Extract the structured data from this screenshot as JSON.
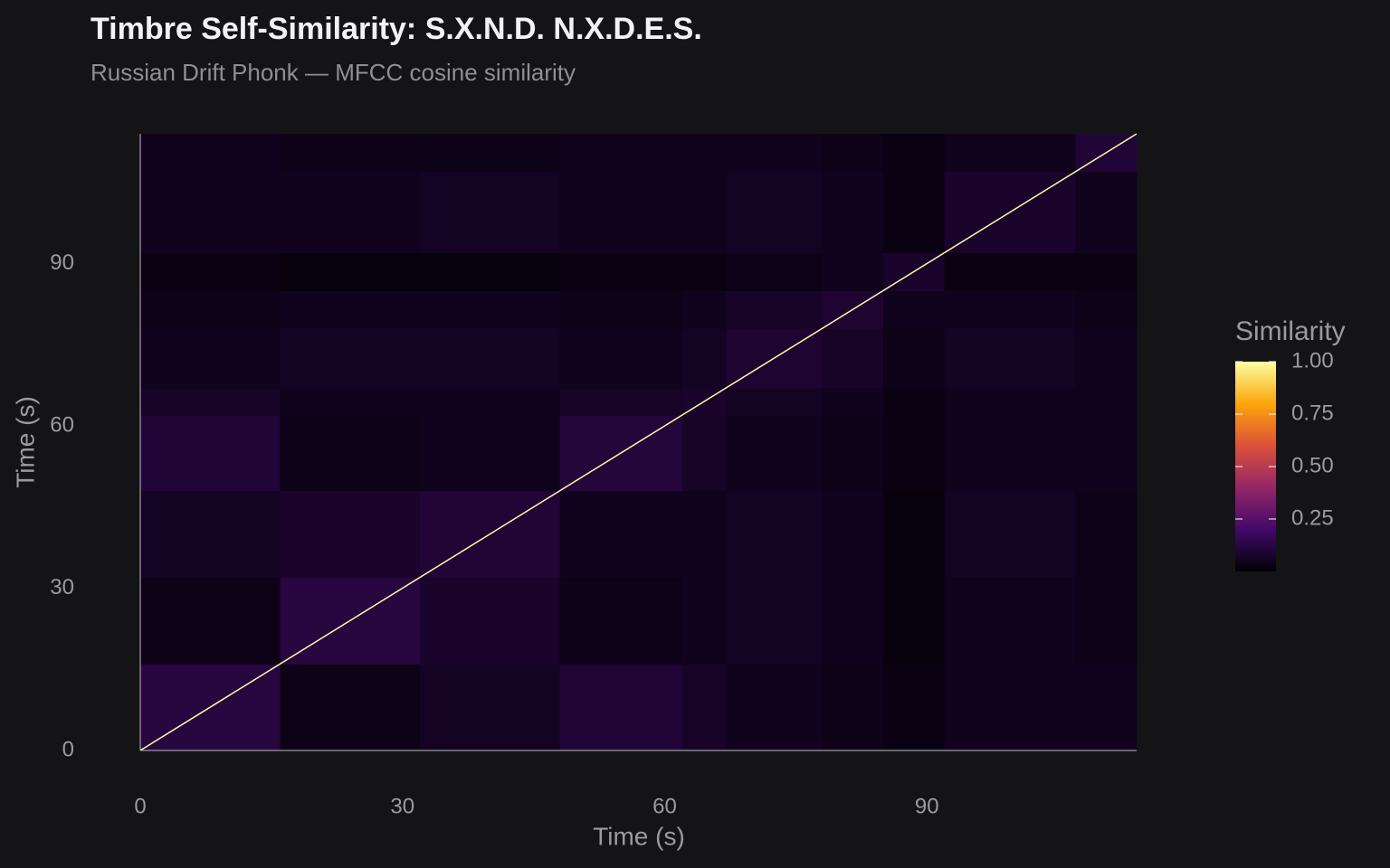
{
  "chart_data": {
    "type": "heatmap",
    "title": "Timbre Self-Similarity: S.X.N.D. N.X.D.E.S.",
    "subtitle": "Russian Drift Phonk — MFCC cosine similarity",
    "x_label": "Time (s)",
    "y_label": "Time (s)",
    "segments": [
      0,
      16,
      32,
      48,
      62,
      67,
      78,
      85,
      92,
      107,
      114
    ],
    "values": [
      [
        0.12,
        0.04,
        0.06,
        0.1,
        0.07,
        0.05,
        0.04,
        0.03,
        0.05,
        0.05
      ],
      [
        0.04,
        0.12,
        0.08,
        0.04,
        0.05,
        0.06,
        0.05,
        0.02,
        0.05,
        0.04
      ],
      [
        0.06,
        0.08,
        0.1,
        0.05,
        0.05,
        0.06,
        0.05,
        0.02,
        0.06,
        0.04
      ],
      [
        0.1,
        0.04,
        0.05,
        0.11,
        0.07,
        0.05,
        0.04,
        0.03,
        0.05,
        0.05
      ],
      [
        0.07,
        0.05,
        0.05,
        0.07,
        0.08,
        0.06,
        0.05,
        0.03,
        0.05,
        0.05
      ],
      [
        0.05,
        0.06,
        0.06,
        0.05,
        0.06,
        0.09,
        0.07,
        0.04,
        0.06,
        0.05
      ],
      [
        0.04,
        0.05,
        0.05,
        0.04,
        0.05,
        0.07,
        0.09,
        0.05,
        0.05,
        0.04
      ],
      [
        0.03,
        0.02,
        0.02,
        0.03,
        0.03,
        0.04,
        0.05,
        0.08,
        0.03,
        0.03
      ],
      [
        0.05,
        0.05,
        0.06,
        0.05,
        0.05,
        0.06,
        0.05,
        0.03,
        0.08,
        0.05
      ],
      [
        0.05,
        0.04,
        0.04,
        0.05,
        0.05,
        0.05,
        0.04,
        0.03,
        0.05,
        0.1
      ]
    ],
    "diagonal": 1,
    "xlim": [
      0,
      114
    ],
    "ylim": [
      0,
      114
    ],
    "xticks": [
      0,
      30,
      60,
      90
    ],
    "yticks": [
      0,
      30,
      60,
      90
    ],
    "colormap": [
      "#000004",
      "#420a68",
      "#932667",
      "#dd513a",
      "#fca50a",
      "#fcffa4"
    ],
    "clim": [
      0,
      1
    ],
    "legend_title": "Similarity",
    "legend_ticks": [
      0.25,
      {
        "value": 0.5,
        "label": "0.50"
      },
      0.75,
      {
        "value": 1,
        "label": "1.00"
      }
    ]
  }
}
